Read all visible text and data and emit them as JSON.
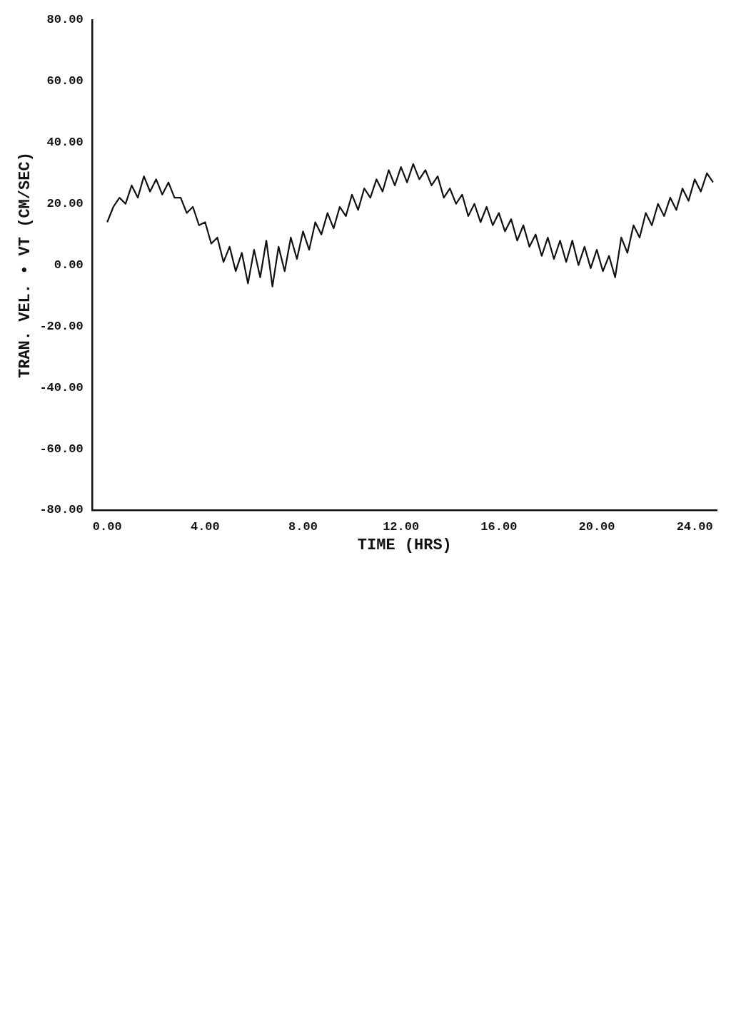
{
  "chart_data": {
    "type": "line",
    "xlabel": "TIME (HRS)",
    "ylabel": "TRAN. VEL. • VT (CM/SEC)",
    "x": [
      0,
      0.25,
      0.5,
      0.75,
      1,
      1.25,
      1.5,
      1.75,
      2,
      2.25,
      2.5,
      2.75,
      3,
      3.25,
      3.5,
      3.75,
      4,
      4.25,
      4.5,
      4.75,
      5,
      5.25,
      5.5,
      5.75,
      6,
      6.25,
      6.5,
      6.75,
      7,
      7.25,
      7.5,
      7.75,
      8,
      8.25,
      8.5,
      8.75,
      9,
      9.25,
      9.5,
      9.75,
      10,
      10.25,
      10.5,
      10.75,
      11,
      11.25,
      11.5,
      11.75,
      12,
      12.25,
      12.5,
      12.75,
      13,
      13.25,
      13.5,
      13.75,
      14,
      14.25,
      14.5,
      14.75,
      15,
      15.25,
      15.5,
      15.75,
      16,
      16.25,
      16.5,
      16.75,
      17,
      17.25,
      17.5,
      17.75,
      18,
      18.25,
      18.5,
      18.75,
      19,
      19.25,
      19.5,
      19.75,
      20,
      20.25,
      20.5,
      20.75,
      21,
      21.25,
      21.5,
      21.75,
      22,
      22.25,
      22.5,
      22.75,
      23,
      23.25,
      23.5,
      23.75,
      24,
      24.25,
      24.5,
      24.75
    ],
    "series": [
      {
        "color": "#111111",
        "values": [
          14,
          19,
          22,
          20,
          26,
          22,
          29,
          24,
          28,
          23,
          27,
          22,
          22,
          17,
          19,
          13,
          14,
          7,
          9,
          1,
          6,
          -2,
          4,
          -6,
          5,
          -4,
          8,
          -7,
          6,
          -2,
          9,
          2,
          11,
          5,
          14,
          10,
          17,
          12,
          19,
          16,
          23,
          18,
          25,
          22,
          28,
          24,
          31,
          26,
          32,
          27,
          33,
          28,
          31,
          26,
          29,
          22,
          25,
          20,
          23,
          16,
          20,
          14,
          19,
          13,
          17,
          11,
          15,
          8,
          13,
          6,
          10,
          3,
          9,
          2,
          8,
          1,
          8,
          0,
          6,
          -1,
          5,
          -2,
          3,
          -4,
          9,
          4,
          13,
          9,
          17,
          13,
          20,
          16,
          22,
          18,
          25,
          21,
          28,
          24,
          30,
          27
        ]
      }
    ],
    "xlim": [
      -0.6,
      24.9
    ],
    "xticks": [
      {
        "value": 0,
        "label": "0.00"
      },
      {
        "value": 4,
        "label": "4.00"
      },
      {
        "value": 8,
        "label": "8.00"
      },
      {
        "value": 12,
        "label": "12.00"
      },
      {
        "value": 16,
        "label": "16.00"
      },
      {
        "value": 20,
        "label": "20.00"
      },
      {
        "value": 24,
        "label": "24.00"
      }
    ],
    "ylim": [
      -80,
      80
    ],
    "yticks": [
      {
        "value": -80,
        "label": "-80.00"
      },
      {
        "value": -60,
        "label": "-60.00"
      },
      {
        "value": -40,
        "label": "-40.00"
      },
      {
        "value": -20,
        "label": "-20.00"
      },
      {
        "value": 0,
        "label": "0.00"
      },
      {
        "value": 20,
        "label": "20.00"
      },
      {
        "value": 40,
        "label": "40.00"
      },
      {
        "value": 60,
        "label": "60.00"
      },
      {
        "value": 80,
        "label": "80.00"
      }
    ],
    "grid": false,
    "legend": false,
    "marker": "none",
    "line_style": "solid"
  }
}
